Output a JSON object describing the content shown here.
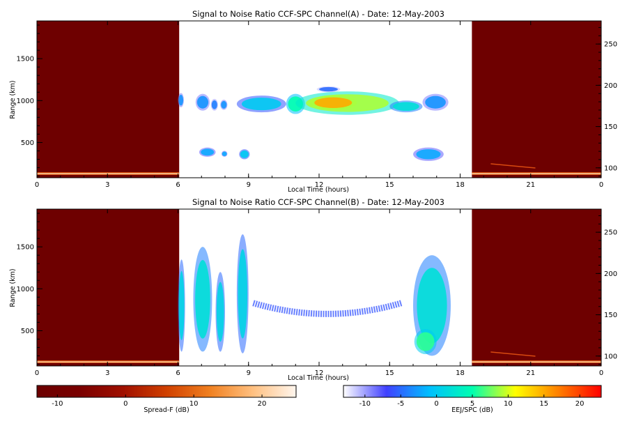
{
  "charts": [
    {
      "type": "heatmap",
      "title": "Signal to Noise Ratio CCF-SPC Channel(A) - Date: 12-May-2003",
      "xlabel": "Local Time (hours)",
      "ylabel": "Range (km)",
      "x_ticks": [
        "0",
        "3",
        "6",
        "9",
        "12",
        "15",
        "18",
        "21",
        "0"
      ],
      "y_ticks": [
        "500",
        "1000",
        "1500"
      ],
      "y2_ticks": [
        "100",
        "150",
        "200",
        "250"
      ],
      "xlim_hours": [
        0,
        24
      ],
      "ylim_km": [
        80,
        1950
      ],
      "y2lim": [
        88,
        278
      ],
      "night_spans_hours": [
        [
          0,
          6.05
        ],
        [
          18.5,
          24
        ]
      ],
      "chart_data": {
        "type": "heatmap",
        "features": [
          {
            "kind": "blob",
            "t0": 6.0,
            "t1": 6.25,
            "r0": 920,
            "r1": 1090,
            "v": -3
          },
          {
            "kind": "blob",
            "t0": 6.75,
            "t1": 7.35,
            "r0": 880,
            "r1": 1080,
            "v": -3
          },
          {
            "kind": "blob",
            "t0": 7.4,
            "t1": 7.7,
            "r0": 880,
            "r1": 1020,
            "v": -4
          },
          {
            "kind": "blob",
            "t0": 7.8,
            "t1": 8.1,
            "r0": 890,
            "r1": 1010,
            "v": -3
          },
          {
            "kind": "blob",
            "t0": 8.5,
            "t1": 10.6,
            "r0": 860,
            "r1": 1060,
            "v": 0
          },
          {
            "kind": "blob",
            "t0": 10.6,
            "t1": 11.4,
            "r0": 840,
            "r1": 1080,
            "v": 5
          },
          {
            "kind": "blob",
            "t0": 11.0,
            "t1": 15.4,
            "r0": 830,
            "r1": 1110,
            "v": 9
          },
          {
            "kind": "blob",
            "t0": 11.6,
            "t1": 13.6,
            "r0": 890,
            "r1": 1060,
            "v": 15
          },
          {
            "kind": "blob",
            "t0": 15.0,
            "t1": 16.4,
            "r0": 860,
            "r1": 1000,
            "v": 2
          },
          {
            "kind": "blob",
            "t0": 16.4,
            "t1": 17.5,
            "r0": 880,
            "r1": 1080,
            "v": -3
          },
          {
            "kind": "blob",
            "t0": 11.9,
            "t1": 12.9,
            "r0": 1100,
            "r1": 1170,
            "v": -5
          },
          {
            "kind": "blob",
            "t0": 6.9,
            "t1": 7.6,
            "r0": 330,
            "r1": 440,
            "v": -2
          },
          {
            "kind": "blob",
            "t0": 7.85,
            "t1": 8.1,
            "r0": 330,
            "r1": 400,
            "v": -2
          },
          {
            "kind": "blob",
            "t0": 8.6,
            "t1": 9.05,
            "r0": 300,
            "r1": 420,
            "v": 0
          },
          {
            "kind": "blob",
            "t0": 16.0,
            "t1": 17.3,
            "r0": 280,
            "r1": 440,
            "v": -2
          }
        ]
      }
    },
    {
      "type": "heatmap",
      "title": "Signal to Noise Ratio CCF-SPC Channel(B) - Date: 12-May-2003",
      "xlabel": "Local Time (hours)",
      "ylabel": "Range (km)",
      "x_ticks": [
        "0",
        "3",
        "6",
        "9",
        "12",
        "15",
        "18",
        "21",
        "0"
      ],
      "y_ticks": [
        "500",
        "1000",
        "1500"
      ],
      "y2_ticks": [
        "100",
        "150",
        "200",
        "250"
      ],
      "xlim_hours": [
        0,
        24
      ],
      "ylim_km": [
        80,
        1950
      ],
      "y2lim": [
        88,
        278
      ],
      "night_spans_hours": [
        [
          0,
          6.05
        ],
        [
          18.5,
          24
        ]
      ],
      "chart_data": {
        "type": "heatmap",
        "features": [
          {
            "kind": "column",
            "t0": 6.0,
            "t1": 6.3,
            "r0": 250,
            "r1": 1350,
            "v": 1
          },
          {
            "kind": "column",
            "t0": 6.65,
            "t1": 7.45,
            "r0": 250,
            "r1": 1500,
            "v": 2
          },
          {
            "kind": "column",
            "t0": 7.6,
            "t1": 8.0,
            "r0": 250,
            "r1": 1200,
            "v": 1
          },
          {
            "kind": "column",
            "t0": 8.5,
            "t1": 9.0,
            "r0": 230,
            "r1": 1650,
            "v": 1
          },
          {
            "kind": "arc",
            "t0": 9.2,
            "t1": 15.5,
            "r_edges": 830,
            "r_mid": 700,
            "v": -6
          },
          {
            "kind": "column",
            "t0": 16.0,
            "t1": 17.6,
            "r0": 200,
            "r1": 1400,
            "v": 2
          },
          {
            "kind": "blob",
            "t0": 16.05,
            "t1": 17.0,
            "r0": 220,
            "r1": 520,
            "v": 6
          }
        ]
      }
    }
  ],
  "colorbars": [
    {
      "label": "Spread-F (dB)",
      "ticks": [
        "-10",
        "0",
        "10",
        "20"
      ],
      "range": [
        -13,
        25
      ],
      "stops": [
        "#6b0000",
        "#7a0000",
        "#a01000",
        "#d04000",
        "#f08020",
        "#ffc080",
        "#fff6ee"
      ]
    },
    {
      "label": "EEJ/SPC (dB)",
      "ticks": [
        "-10",
        "-5",
        "0",
        "5",
        "10",
        "15",
        "20"
      ],
      "range": [
        -13,
        23
      ],
      "stops": [
        "#ffffff",
        "#4040ff",
        "#00bfff",
        "#00ffb0",
        "#ffff00",
        "#ff8000",
        "#ff0000"
      ]
    }
  ]
}
